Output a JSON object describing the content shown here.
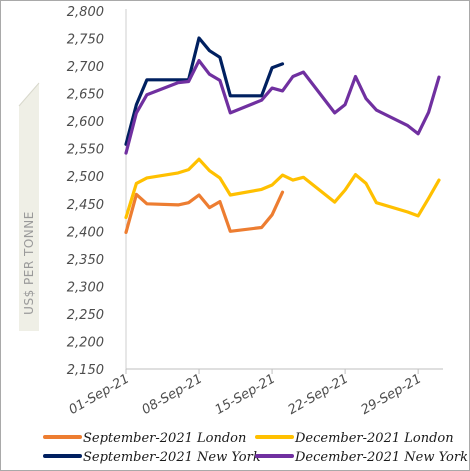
{
  "chart_data": {
    "type": "line",
    "ylabel": "US$ PER TONNE",
    "xlabel": "",
    "title": "",
    "ylim": [
      2150,
      2800
    ],
    "yticks": [
      2150,
      2200,
      2250,
      2300,
      2350,
      2400,
      2450,
      2500,
      2550,
      2600,
      2650,
      2700,
      2750,
      2800
    ],
    "ytick_labels": [
      "2,150",
      "2,200",
      "2,250",
      "2,300",
      "2,350",
      "2,400",
      "2,450",
      "2,500",
      "2,550",
      "2,600",
      "2,650",
      "2,700",
      "2,750",
      "2,800"
    ],
    "xlim": [
      "2021-09-01",
      "2021-10-01"
    ],
    "xticks": [
      "2021-09-01",
      "2021-09-08",
      "2021-09-15",
      "2021-09-22",
      "2021-09-29"
    ],
    "xtick_labels": [
      "01-Sep-21",
      "08-Sep-21",
      "15-Sep-21",
      "22-Sep-21",
      "29-Sep-21"
    ],
    "grid": false,
    "legend_position": "bottom",
    "series": [
      {
        "name": "September-2021 London",
        "color": "#ed7d31",
        "points": [
          [
            "2021-09-01",
            2398
          ],
          [
            "2021-09-02",
            2467
          ],
          [
            "2021-09-03",
            2450
          ],
          [
            "2021-09-06",
            2448
          ],
          [
            "2021-09-07",
            2452
          ],
          [
            "2021-09-08",
            2466
          ],
          [
            "2021-09-09",
            2443
          ],
          [
            "2021-09-10",
            2454
          ],
          [
            "2021-09-11",
            2400
          ],
          [
            "2021-09-14",
            2407
          ],
          [
            "2021-09-15",
            2430
          ],
          [
            "2021-09-16",
            2471
          ]
        ]
      },
      {
        "name": "December-2021 London",
        "color": "#ffc000",
        "points": [
          [
            "2021-09-01",
            2425
          ],
          [
            "2021-09-02",
            2487
          ],
          [
            "2021-09-03",
            2497
          ],
          [
            "2021-09-06",
            2506
          ],
          [
            "2021-09-07",
            2512
          ],
          [
            "2021-09-08",
            2531
          ],
          [
            "2021-09-09",
            2510
          ],
          [
            "2021-09-10",
            2497
          ],
          [
            "2021-09-11",
            2466
          ],
          [
            "2021-09-14",
            2476
          ],
          [
            "2021-09-15",
            2484
          ],
          [
            "2021-09-16",
            2502
          ],
          [
            "2021-09-17",
            2493
          ],
          [
            "2021-09-18",
            2498
          ],
          [
            "2021-09-21",
            2453
          ],
          [
            "2021-09-22",
            2475
          ],
          [
            "2021-09-23",
            2503
          ],
          [
            "2021-09-24",
            2487
          ],
          [
            "2021-09-25",
            2452
          ],
          [
            "2021-09-28",
            2435
          ],
          [
            "2021-09-29",
            2428
          ],
          [
            "2021-09-30",
            2460
          ],
          [
            "2021-10-01",
            2493
          ]
        ]
      },
      {
        "name": "September-2021 New York",
        "color": "#002060",
        "points": [
          [
            "2021-09-01",
            2558
          ],
          [
            "2021-09-02",
            2630
          ],
          [
            "2021-09-03",
            2675
          ],
          [
            "2021-09-06",
            2675
          ],
          [
            "2021-09-07",
            2675
          ],
          [
            "2021-09-08",
            2751
          ],
          [
            "2021-09-09",
            2728
          ],
          [
            "2021-09-10",
            2716
          ],
          [
            "2021-09-11",
            2646
          ],
          [
            "2021-09-14",
            2646
          ],
          [
            "2021-09-15",
            2697
          ],
          [
            "2021-09-16",
            2704
          ]
        ]
      },
      {
        "name": "December-2021 New York",
        "color": "#7030a0",
        "points": [
          [
            "2021-09-01",
            2542
          ],
          [
            "2021-09-02",
            2615
          ],
          [
            "2021-09-03",
            2648
          ],
          [
            "2021-09-06",
            2670
          ],
          [
            "2021-09-07",
            2672
          ],
          [
            "2021-09-08",
            2710
          ],
          [
            "2021-09-09",
            2685
          ],
          [
            "2021-09-10",
            2674
          ],
          [
            "2021-09-11",
            2615
          ],
          [
            "2021-09-14",
            2638
          ],
          [
            "2021-09-15",
            2660
          ],
          [
            "2021-09-16",
            2655
          ],
          [
            "2021-09-17",
            2681
          ],
          [
            "2021-09-18",
            2689
          ],
          [
            "2021-09-21",
            2615
          ],
          [
            "2021-09-22",
            2630
          ],
          [
            "2021-09-23",
            2681
          ],
          [
            "2021-09-24",
            2641
          ],
          [
            "2021-09-25",
            2620
          ],
          [
            "2021-09-28",
            2592
          ],
          [
            "2021-09-29",
            2577
          ],
          [
            "2021-09-30",
            2616
          ],
          [
            "2021-10-01",
            2680
          ]
        ]
      }
    ]
  }
}
